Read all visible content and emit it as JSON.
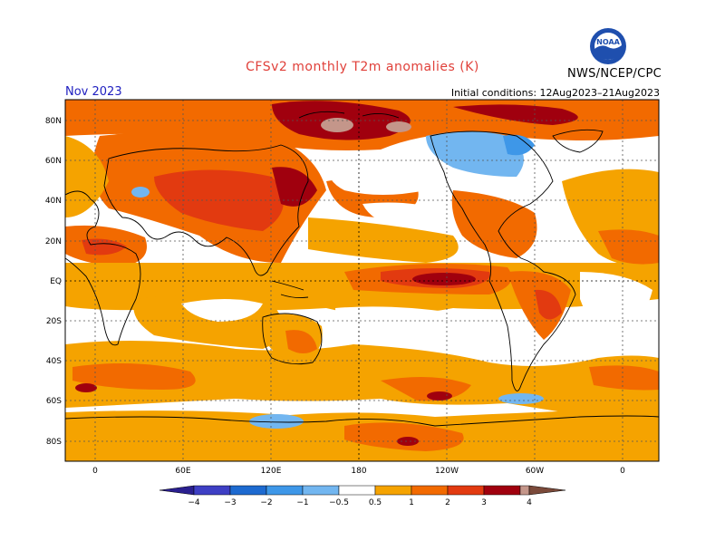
{
  "header": {
    "title": "CFSv2 monthly T2m anomalies (K)",
    "valid_month": "Nov 2023",
    "initial_conditions": "Initial conditions: 12Aug2023–21Aug2023",
    "agency": "NWS/NCEP/CPC",
    "logo_text": "NOAA"
  },
  "axes": {
    "lat_labels": [
      "80N",
      "60N",
      "40N",
      "20N",
      "EQ",
      "20S",
      "40S",
      "60S",
      "80S"
    ],
    "lon_labels": [
      "0",
      "60E",
      "120E",
      "180",
      "120W",
      "60W",
      "0"
    ]
  },
  "colorbar": {
    "labels": [
      "−4",
      "−3",
      "−2",
      "−1",
      "−0.5",
      "0.5",
      "1",
      "2",
      "3",
      "4"
    ],
    "colors": [
      "#2a1f8f",
      "#3e3fc4",
      "#1d6ad0",
      "#3e97e8",
      "#72b6f0",
      "#ffffff",
      "#f5a300",
      "#f26a00",
      "#e23a10",
      "#a0000e",
      "#c4968a",
      "#7b4a3a"
    ]
  },
  "map_colors": {
    "ocean_neutral": "#ffffff",
    "weak_warm": "#f5a300",
    "moderate_warm": "#f26a00",
    "strong_warm": "#e23a10",
    "very_strong_warm": "#a0000e",
    "extreme_warm": "#c4968a",
    "weak_cool": "#72b6f0"
  }
}
